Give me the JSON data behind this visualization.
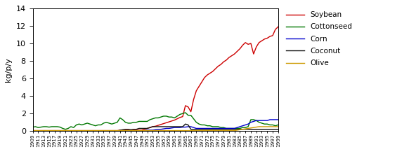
{
  "years": [
    1909,
    1910,
    1911,
    1912,
    1913,
    1914,
    1915,
    1916,
    1917,
    1918,
    1919,
    1920,
    1921,
    1922,
    1923,
    1924,
    1925,
    1926,
    1927,
    1928,
    1929,
    1930,
    1931,
    1932,
    1933,
    1934,
    1935,
    1936,
    1937,
    1938,
    1939,
    1940,
    1941,
    1942,
    1943,
    1944,
    1945,
    1946,
    1947,
    1948,
    1949,
    1950,
    1951,
    1952,
    1953,
    1954,
    1955,
    1956,
    1957,
    1958,
    1959,
    1960,
    1961,
    1962,
    1963,
    1964,
    1965,
    1966,
    1967,
    1968,
    1969,
    1970,
    1971,
    1972,
    1973,
    1974,
    1975,
    1976,
    1977,
    1978,
    1979,
    1980,
    1981,
    1982,
    1983,
    1984,
    1985,
    1986,
    1987,
    1988,
    1989,
    1990,
    1991,
    1992,
    1993,
    1994,
    1995,
    1996,
    1997,
    1998,
    1999
  ],
  "soybean": [
    0.05,
    0.05,
    0.05,
    0.05,
    0.05,
    0.05,
    0.05,
    0.05,
    0.05,
    0.05,
    0.05,
    0.05,
    0.05,
    0.05,
    0.05,
    0.05,
    0.05,
    0.05,
    0.05,
    0.05,
    0.05,
    0.05,
    0.05,
    0.05,
    0.05,
    0.05,
    0.05,
    0.05,
    0.05,
    0.05,
    0.05,
    0.05,
    0.1,
    0.1,
    0.1,
    0.1,
    0.1,
    0.1,
    0.1,
    0.1,
    0.1,
    0.2,
    0.3,
    0.4,
    0.5,
    0.55,
    0.65,
    0.75,
    0.85,
    0.95,
    1.05,
    1.15,
    1.25,
    1.4,
    1.55,
    1.65,
    2.9,
    2.75,
    2.2,
    3.6,
    4.6,
    5.1,
    5.6,
    6.1,
    6.4,
    6.6,
    6.8,
    7.1,
    7.4,
    7.6,
    7.9,
    8.1,
    8.4,
    8.6,
    8.8,
    9.1,
    9.4,
    9.8,
    10.1,
    9.9,
    10.0,
    8.8,
    9.6,
    10.1,
    10.3,
    10.5,
    10.6,
    10.8,
    10.9,
    11.6,
    11.9
  ],
  "cottonseed": [
    0.45,
    0.5,
    0.4,
    0.45,
    0.5,
    0.5,
    0.45,
    0.5,
    0.5,
    0.5,
    0.45,
    0.3,
    0.2,
    0.3,
    0.5,
    0.4,
    0.7,
    0.8,
    0.7,
    0.8,
    0.9,
    0.8,
    0.7,
    0.6,
    0.7,
    0.7,
    0.9,
    1.0,
    0.9,
    0.8,
    0.9,
    1.0,
    1.5,
    1.3,
    1.0,
    0.9,
    0.9,
    1.0,
    1.0,
    1.1,
    1.1,
    1.1,
    1.1,
    1.3,
    1.4,
    1.5,
    1.5,
    1.6,
    1.7,
    1.7,
    1.6,
    1.6,
    1.5,
    1.7,
    1.9,
    2.0,
    2.1,
    1.8,
    1.8,
    1.4,
    1.0,
    0.8,
    0.7,
    0.7,
    0.6,
    0.6,
    0.5,
    0.5,
    0.5,
    0.4,
    0.4,
    0.3,
    0.3,
    0.3,
    0.3,
    0.3,
    0.3,
    0.4,
    0.4,
    0.5,
    1.3,
    1.3,
    1.2,
    1.0,
    0.9,
    0.8,
    0.8,
    0.7,
    0.7,
    0.6,
    0.7
  ],
  "corn": [
    0.0,
    0.0,
    0.0,
    0.0,
    0.0,
    0.0,
    0.0,
    0.0,
    0.0,
    0.0,
    0.0,
    0.0,
    0.0,
    0.0,
    0.0,
    0.0,
    0.0,
    0.0,
    0.0,
    0.0,
    0.0,
    0.0,
    0.0,
    0.0,
    0.0,
    0.0,
    0.0,
    0.0,
    0.0,
    0.0,
    0.0,
    0.0,
    0.0,
    0.0,
    0.0,
    0.0,
    0.0,
    0.0,
    0.0,
    0.0,
    0.0,
    0.05,
    0.1,
    0.1,
    0.1,
    0.15,
    0.2,
    0.2,
    0.25,
    0.3,
    0.3,
    0.35,
    0.4,
    0.4,
    0.4,
    0.45,
    0.45,
    0.5,
    0.5,
    0.4,
    0.3,
    0.3,
    0.3,
    0.3,
    0.3,
    0.3,
    0.3,
    0.3,
    0.3,
    0.3,
    0.3,
    0.3,
    0.3,
    0.3,
    0.3,
    0.4,
    0.5,
    0.6,
    0.7,
    0.8,
    1.0,
    1.1,
    1.2,
    1.2,
    1.2,
    1.2,
    1.2,
    1.3,
    1.3,
    1.3,
    1.3
  ],
  "coconut": [
    0.0,
    0.0,
    0.0,
    0.0,
    0.0,
    0.0,
    0.0,
    0.0,
    0.0,
    0.0,
    0.0,
    0.0,
    0.0,
    0.0,
    0.0,
    0.0,
    0.0,
    0.0,
    0.0,
    0.0,
    0.0,
    0.0,
    0.0,
    0.0,
    0.0,
    0.0,
    0.0,
    0.0,
    0.0,
    0.0,
    0.0,
    0.0,
    0.1,
    0.15,
    0.2,
    0.2,
    0.15,
    0.2,
    0.2,
    0.3,
    0.3,
    0.3,
    0.3,
    0.4,
    0.5,
    0.5,
    0.5,
    0.5,
    0.5,
    0.5,
    0.5,
    0.5,
    0.5,
    0.5,
    0.5,
    0.5,
    0.8,
    0.7,
    0.2,
    0.2,
    0.2,
    0.2,
    0.2,
    0.2,
    0.2,
    0.2,
    0.2,
    0.2,
    0.2,
    0.2,
    0.2,
    0.2,
    0.2,
    0.2,
    0.2,
    0.2,
    0.2,
    0.2,
    0.2,
    0.2,
    0.2,
    0.2,
    0.2,
    0.2,
    0.2,
    0.2,
    0.2,
    0.2,
    0.2,
    0.2,
    0.2
  ],
  "olive": [
    0.05,
    0.05,
    0.05,
    0.05,
    0.05,
    0.05,
    0.05,
    0.05,
    0.05,
    0.05,
    0.05,
    0.05,
    0.05,
    0.05,
    0.05,
    0.05,
    0.05,
    0.05,
    0.05,
    0.05,
    0.05,
    0.05,
    0.05,
    0.05,
    0.05,
    0.05,
    0.05,
    0.05,
    0.05,
    0.05,
    0.05,
    0.05,
    0.05,
    0.05,
    0.05,
    0.05,
    0.05,
    0.05,
    0.05,
    0.05,
    0.05,
    0.05,
    0.05,
    0.05,
    0.05,
    0.05,
    0.05,
    0.05,
    0.05,
    0.05,
    0.05,
    0.05,
    0.05,
    0.05,
    0.05,
    0.05,
    0.05,
    0.05,
    0.05,
    0.05,
    0.05,
    0.05,
    0.05,
    0.05,
    0.05,
    0.05,
    0.05,
    0.05,
    0.05,
    0.05,
    0.05,
    0.05,
    0.05,
    0.05,
    0.05,
    0.1,
    0.15,
    0.2,
    0.25,
    0.3,
    0.35,
    0.4,
    0.45,
    0.5,
    0.5,
    0.5,
    0.5,
    0.5,
    0.5,
    0.5,
    0.5
  ],
  "soybean_color": "#cc0000",
  "cottonseed_color": "#007700",
  "corn_color": "#0000cc",
  "coconut_color": "#111111",
  "olive_color": "#cc9900",
  "ylabel": "kg/p/y",
  "ylim": [
    0,
    14
  ],
  "yticks": [
    0,
    2,
    4,
    6,
    8,
    10,
    12,
    14
  ],
  "legend_labels": [
    "Soybean",
    "Cottonseed",
    "Corn",
    "Coconut",
    "Olive"
  ],
  "background_color": "#ffffff",
  "figsize": [
    5.82,
    2.4
  ],
  "dpi": 100
}
